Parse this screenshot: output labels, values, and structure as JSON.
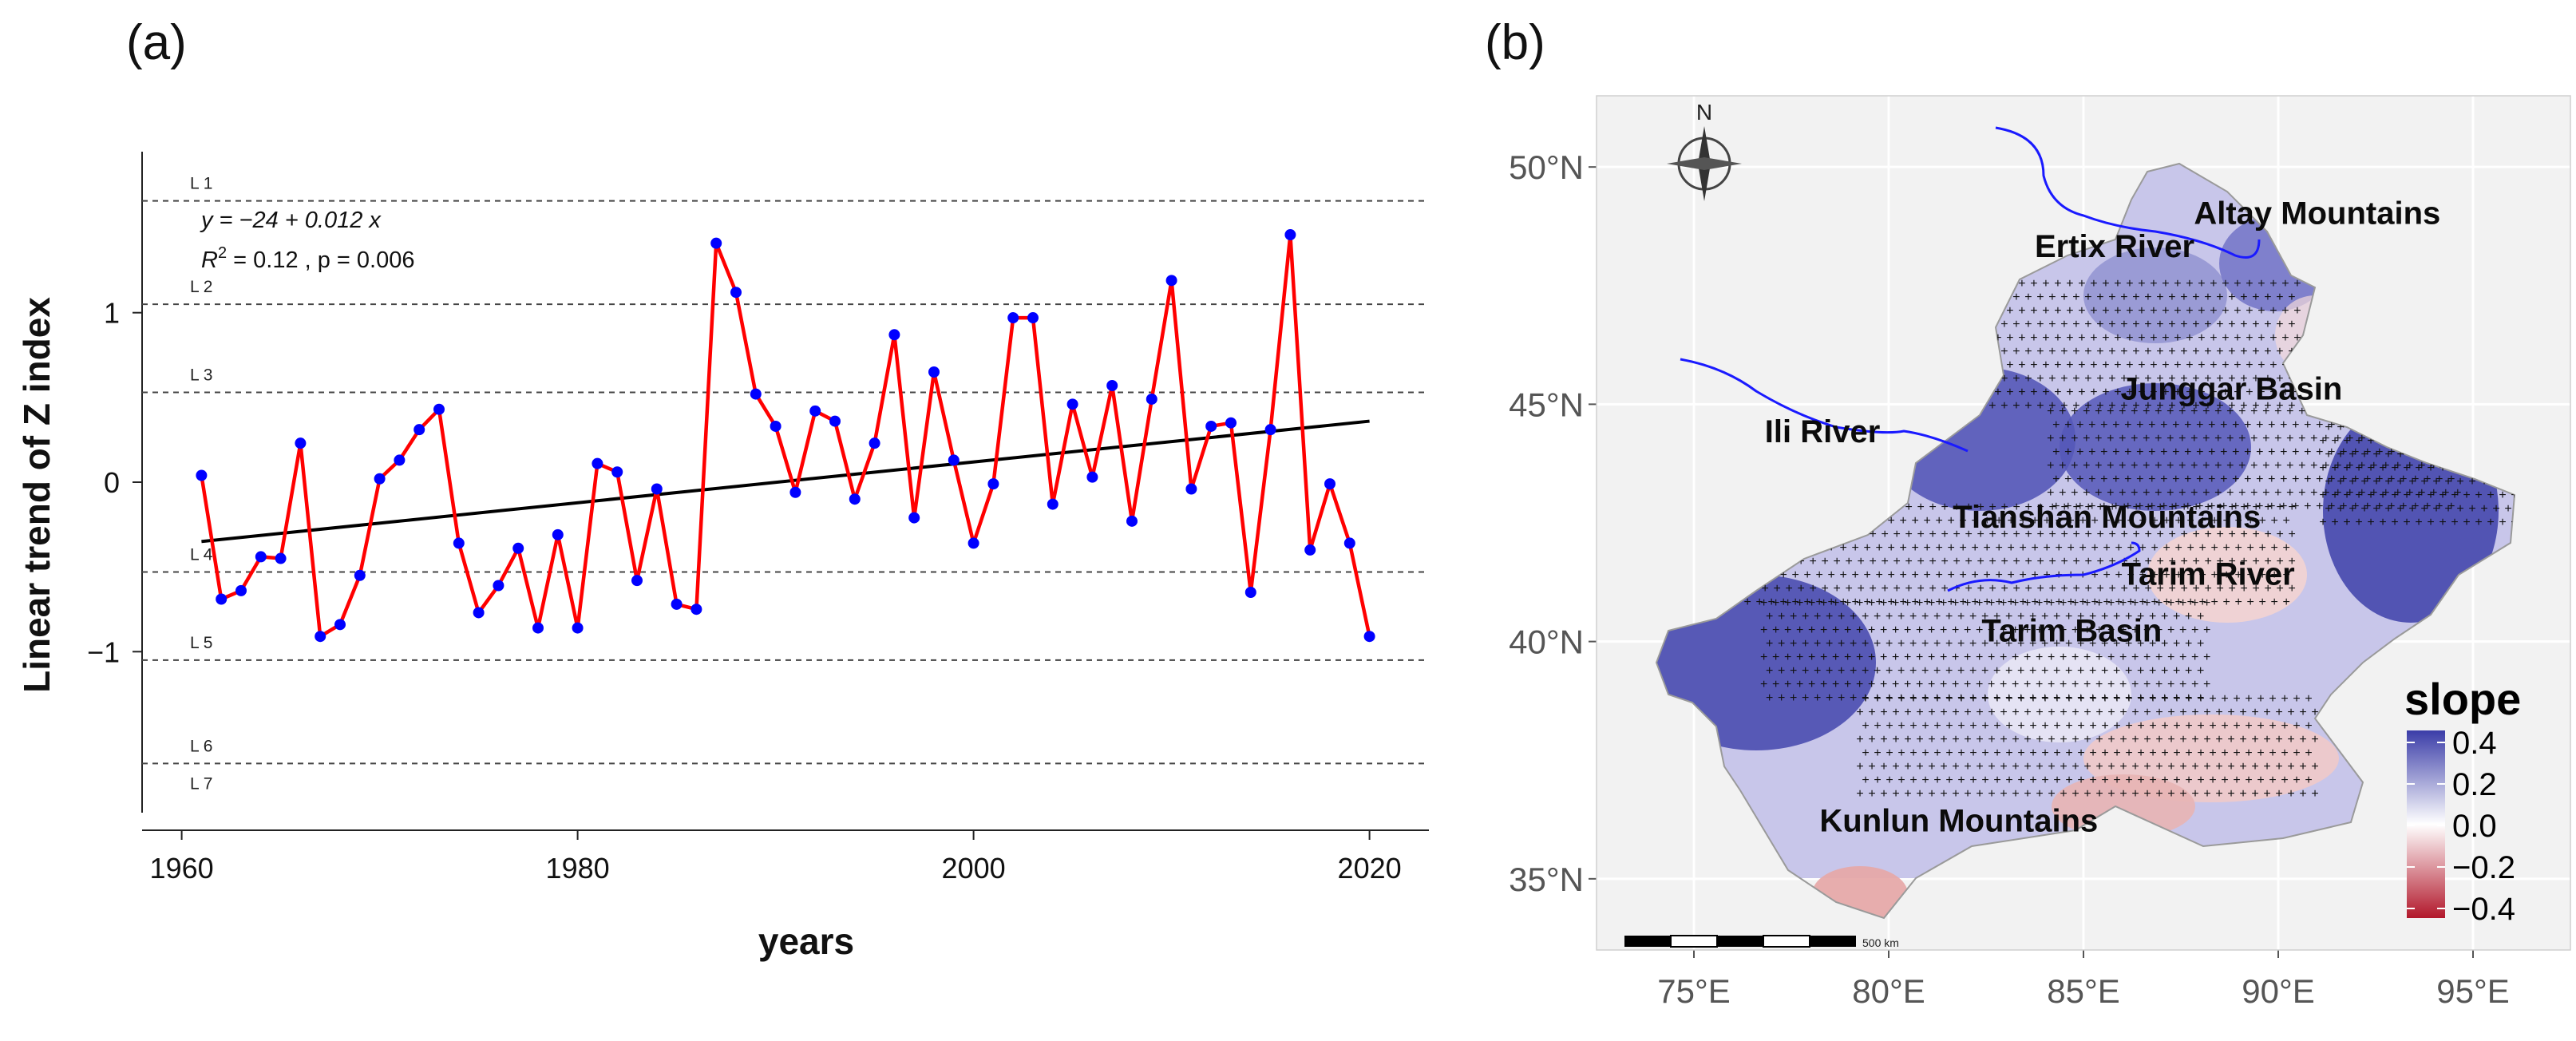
{
  "panel_a": {
    "letter": "(a)"
  },
  "panel_b": {
    "letter": "(b)"
  },
  "chart_data": [
    {
      "type": "line",
      "panel": "(a)",
      "title": "",
      "xlabel": "years",
      "ylabel": "Linear trend of Z index",
      "xlim": [
        1958,
        2023
      ],
      "ylim": [
        -1.95,
        1.95
      ],
      "xticks": [
        1960,
        1980,
        2000,
        2020
      ],
      "yticks": [
        -1,
        0,
        1
      ],
      "grid": false,
      "series": [
        {
          "name": "Z index",
          "color": "#ff0000",
          "marker_color": "#0000ff",
          "x": [
            1961,
            1962,
            1963,
            1964,
            1965,
            1966,
            1967,
            1968,
            1969,
            1970,
            1971,
            1972,
            1973,
            1974,
            1975,
            1976,
            1977,
            1978,
            1979,
            1980,
            1981,
            1982,
            1983,
            1984,
            1985,
            1986,
            1987,
            1988,
            1989,
            1990,
            1991,
            1992,
            1993,
            1994,
            1995,
            1996,
            1997,
            1998,
            1999,
            2000,
            2001,
            2002,
            2003,
            2004,
            2005,
            2006,
            2007,
            2008,
            2009,
            2010,
            2011,
            2012,
            2013,
            2014,
            2015,
            2016,
            2017,
            2018,
            2019,
            2020
          ],
          "values": [
            0.04,
            -0.69,
            -0.64,
            -0.44,
            -0.45,
            0.23,
            -0.91,
            -0.84,
            -0.55,
            0.02,
            0.13,
            0.31,
            0.43,
            -0.36,
            -0.77,
            -0.61,
            -0.39,
            -0.86,
            -0.31,
            -0.86,
            0.11,
            0.06,
            -0.58,
            -0.04,
            -0.72,
            -0.75,
            1.41,
            1.12,
            0.52,
            0.33,
            -0.06,
            0.42,
            0.36,
            -0.1,
            0.23,
            0.87,
            -0.21,
            0.65,
            0.13,
            -0.36,
            -0.01,
            0.97,
            0.97,
            -0.13,
            0.46,
            0.03,
            0.57,
            -0.23,
            0.49,
            1.19,
            -0.04,
            0.33,
            0.35,
            -0.65,
            0.31,
            1.46,
            -0.4,
            -0.01,
            -0.36,
            -0.91
          ]
        },
        {
          "name": "Linear trend",
          "color": "#000000",
          "x": [
            1961,
            2020
          ],
          "values": [
            -0.35,
            0.36
          ]
        }
      ],
      "reference_lines": [
        {
          "label": "L 1",
          "y": 1.66
        },
        {
          "label": "L 2",
          "y": 1.05
        },
        {
          "label": "L 3",
          "y": 0.53
        },
        {
          "label": "L 4",
          "y": -0.53
        },
        {
          "label": "L 5",
          "y": -1.05
        },
        {
          "label": "L 6",
          "y": -1.66
        }
      ],
      "extra_label": "L 7",
      "annotations": {
        "equation": "y = −24 + 0.012 x",
        "stats_r": "R",
        "stats_sup": "2",
        "stats_rest": " = 0.12 , p = 0.006"
      }
    },
    {
      "type": "heatmap",
      "panel": "(b)",
      "title": "",
      "xlim": [
        72.5,
        97.5
      ],
      "ylim": [
        33.5,
        51.5
      ],
      "xticks": [
        75,
        80,
        85,
        90,
        95
      ],
      "yticks": [
        35,
        40,
        45,
        50
      ],
      "xtick_labels": [
        "75°E",
        "80°E",
        "85°E",
        "90°E",
        "95°E"
      ],
      "ytick_labels": [
        "35°N",
        "40°N",
        "45°N",
        "50°N"
      ],
      "grid": true,
      "legend": {
        "title": "slope",
        "position": "bottom-right",
        "range": [
          -0.4,
          0.4
        ],
        "tick_labels": [
          "0.4",
          "0.2",
          "0.0",
          "−0.2",
          "−0.4"
        ],
        "colors": {
          "high": "#3b3da8",
          "mid": "#ffffff",
          "low": "#b2182b"
        }
      },
      "north_label": "N",
      "scale_bar_label": "500 km",
      "labels": [
        {
          "text": "Altay Mountains",
          "lon": 91.0,
          "lat": 48.8
        },
        {
          "text": "Ertix River",
          "lon": 85.8,
          "lat": 48.1
        },
        {
          "text": "Junggar Basin",
          "lon": 88.8,
          "lat": 45.1
        },
        {
          "text": "Ili River",
          "lon": 78.3,
          "lat": 44.2
        },
        {
          "text": "Tianshan Mountains",
          "lon": 85.6,
          "lat": 42.4
        },
        {
          "text": "Tarim River",
          "lon": 88.2,
          "lat": 41.2
        },
        {
          "text": "Tarim Basin",
          "lon": 84.7,
          "lat": 40.0
        },
        {
          "text": "Kunlun Mountains",
          "lon": 81.8,
          "lat": 36.0
        }
      ]
    }
  ]
}
